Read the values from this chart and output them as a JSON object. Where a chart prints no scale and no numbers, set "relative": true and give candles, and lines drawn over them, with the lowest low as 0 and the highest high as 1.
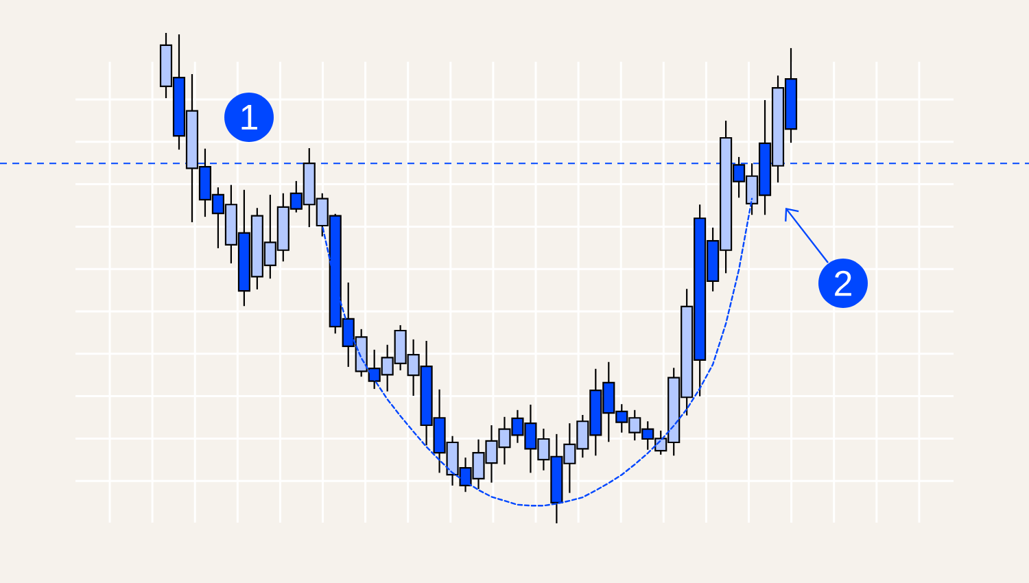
{
  "chart_data": {
    "type": "candlestick",
    "relative": true,
    "grid": true,
    "categories": [
      null,
      null,
      null,
      null,
      null,
      null,
      null,
      null,
      null,
      null,
      null,
      null,
      null,
      null,
      null,
      null,
      null,
      null,
      null,
      null,
      null,
      null,
      null,
      null,
      null,
      null,
      null,
      null,
      null,
      null,
      null,
      null,
      null,
      null,
      null,
      null,
      null,
      null,
      null,
      null,
      null,
      null,
      null,
      null,
      null,
      null,
      null,
      null,
      null
    ],
    "ohlc": [
      [
        0.891,
        1,
        0.867,
        0.975
      ],
      [
        0.909,
        0.997,
        0.762,
        0.79
      ],
      [
        0.724,
        0.916,
        0.614,
        0.841
      ],
      [
        0.727,
        0.764,
        0.625,
        0.66
      ],
      [
        0.67,
        0.685,
        0.561,
        0.632
      ],
      [
        0.568,
        0.69,
        0.53,
        0.65
      ],
      [
        0.592,
        0.68,
        0.443,
        0.474
      ],
      [
        0.503,
        0.643,
        0.477,
        0.627
      ],
      [
        0.526,
        0.67,
        0.499,
        0.573
      ],
      [
        0.557,
        0.673,
        0.534,
        0.645
      ],
      [
        0.673,
        0.698,
        0.634,
        0.641
      ],
      [
        0.65,
        0.765,
        0.604,
        0.734
      ],
      [
        0.607,
        0.673,
        0.585,
        0.662
      ],
      [
        0.627,
        0.631,
        0.387,
        0.401
      ],
      [
        0.417,
        0.491,
        0.319,
        0.361
      ],
      [
        0.31,
        0.396,
        0.299,
        0.38
      ],
      [
        0.316,
        0.354,
        0.274,
        0.29
      ],
      [
        0.303,
        0.364,
        0.269,
        0.338
      ],
      [
        0.326,
        0.404,
        0.312,
        0.393
      ],
      [
        0.302,
        0.375,
        0.26,
        0.344
      ],
      [
        0.32,
        0.372,
        0.159,
        0.2
      ],
      [
        0.215,
        0.273,
        0.103,
        0.144
      ],
      [
        0.099,
        0.178,
        0.077,
        0.165
      ],
      [
        0.113,
        0.134,
        0.064,
        0.077
      ],
      [
        0.091,
        0.171,
        0.07,
        0.144
      ],
      [
        0.123,
        0.2,
        0.083,
        0.168
      ],
      [
        0.155,
        0.217,
        0.12,
        0.192
      ],
      [
        0.214,
        0.231,
        0.164,
        0.18
      ],
      [
        0.204,
        0.242,
        0.103,
        0.152
      ],
      [
        0.13,
        0.193,
        0.108,
        0.172
      ],
      [
        0.136,
        0.182,
        0,
        0.042
      ],
      [
        0.122,
        0.204,
        0.062,
        0.161
      ],
      [
        0.152,
        0.221,
        0.134,
        0.208
      ],
      [
        0.271,
        0.315,
        0.138,
        0.18
      ],
      [
        0.287,
        0.329,
        0.166,
        0.225
      ],
      [
        0.228,
        0.243,
        0.185,
        0.206
      ],
      [
        0.185,
        0.231,
        0.169,
        0.215
      ],
      [
        0.192,
        0.208,
        0.15,
        0.172
      ],
      [
        0.148,
        0.189,
        0.14,
        0.173
      ],
      [
        0.165,
        0.317,
        0.138,
        0.297
      ],
      [
        0.257,
        0.478,
        0.22,
        0.442
      ],
      [
        0.622,
        0.65,
        0.259,
        0.333
      ],
      [
        0.576,
        0.603,
        0.473,
        0.494
      ],
      [
        0.557,
        0.821,
        0.51,
        0.786
      ],
      [
        0.731,
        0.747,
        0.664,
        0.697
      ],
      [
        0.652,
        0.734,
        0.629,
        0.708
      ],
      [
        0.775,
        0.863,
        0.629,
        0.669
      ],
      [
        0.729,
        0.913,
        0.695,
        0.888
      ],
      [
        0.906,
        0.969,
        0.776,
        0.804
      ]
    ],
    "colors": [
      "#b3c8ff",
      "#0047ff",
      "#b3c8ff",
      "#0047ff",
      "#0047ff",
      "#b3c8ff",
      "#0047ff",
      "#b3c8ff",
      "#b3c8ff",
      "#b3c8ff",
      "#0047ff",
      "#b3c8ff",
      "#b3c8ff",
      "#0047ff",
      "#0047ff",
      "#b3c8ff",
      "#0047ff",
      "#b3c8ff",
      "#b3c8ff",
      "#b3c8ff",
      "#0047ff",
      "#0047ff",
      "#b3c8ff",
      "#0047ff",
      "#b3c8ff",
      "#b3c8ff",
      "#b3c8ff",
      "#0047ff",
      "#0047ff",
      "#b3c8ff",
      "#0047ff",
      "#b3c8ff",
      "#b3c8ff",
      "#0047ff",
      "#0047ff",
      "#0047ff",
      "#b3c8ff",
      "#0047ff",
      "#b3c8ff",
      "#b3c8ff",
      "#b3c8ff",
      "#0047ff",
      "#0047ff",
      "#b3c8ff",
      "#0047ff",
      "#b3c8ff",
      "#0047ff",
      "#b3c8ff",
      "#0047ff"
    ],
    "series": [
      {
        "type": "line",
        "color": "#0047ff",
        "line_style": "dashed",
        "values": [
          null,
          null,
          null,
          null,
          null,
          null,
          null,
          null,
          null,
          null,
          null,
          null,
          0.608,
          0.487,
          0.399,
          0.337,
          0.293,
          0.253,
          0.219,
          0.187,
          0.156,
          0.129,
          0.103,
          0.085,
          0.068,
          0.054,
          0.046,
          0.038,
          0.036,
          0.036,
          0.04,
          0.046,
          0.053,
          0.067,
          0.082,
          0.099,
          0.12,
          0.143,
          0.169,
          0.199,
          0.233,
          0.275,
          0.324,
          0.407,
          0.517,
          0.662,
          null,
          null,
          null
        ]
      }
    ],
    "ref_lines": [
      {
        "axis": "y",
        "value": 0.734,
        "color": "#0047ff",
        "line_style": "dashed"
      }
    ],
    "annotations": [
      "1",
      "2"
    ]
  }
}
